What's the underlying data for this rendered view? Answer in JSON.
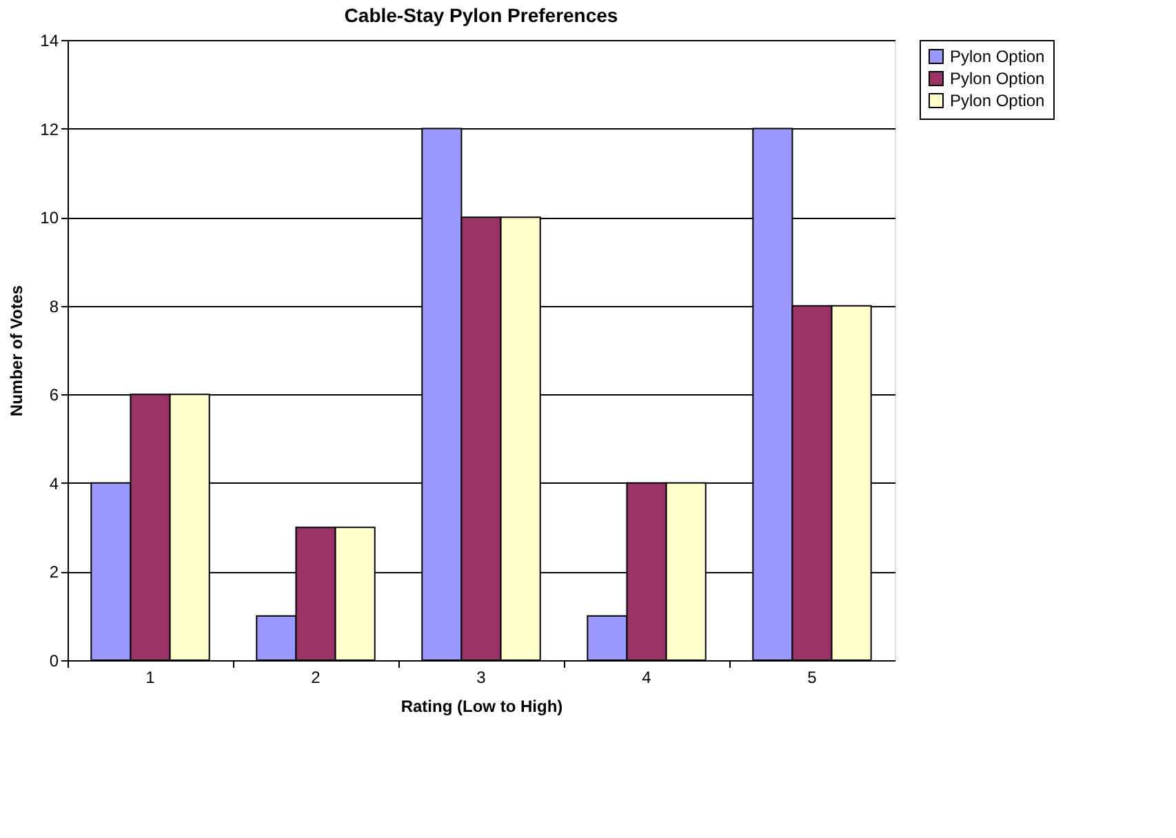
{
  "chart_data": {
    "type": "bar",
    "title": "Cable-Stay Pylon Preferences",
    "xlabel": "Rating (Low to High)",
    "ylabel": "Number of Votes",
    "categories": [
      "1",
      "2",
      "3",
      "4",
      "5"
    ],
    "series": [
      {
        "name": "Pylon Option",
        "color": "#9999ff",
        "values": [
          4,
          1,
          12,
          1,
          12
        ]
      },
      {
        "name": "Pylon Option",
        "color": "#993366",
        "values": [
          6,
          3,
          10,
          4,
          8
        ]
      },
      {
        "name": "Pylon Option",
        "color": "#ffffcc",
        "values": [
          6,
          3,
          10,
          4,
          8
        ]
      }
    ],
    "ylim": [
      0,
      14
    ],
    "yticks": [
      0,
      2,
      4,
      6,
      8,
      10,
      12,
      14
    ],
    "grid": "y",
    "legend": "right"
  }
}
